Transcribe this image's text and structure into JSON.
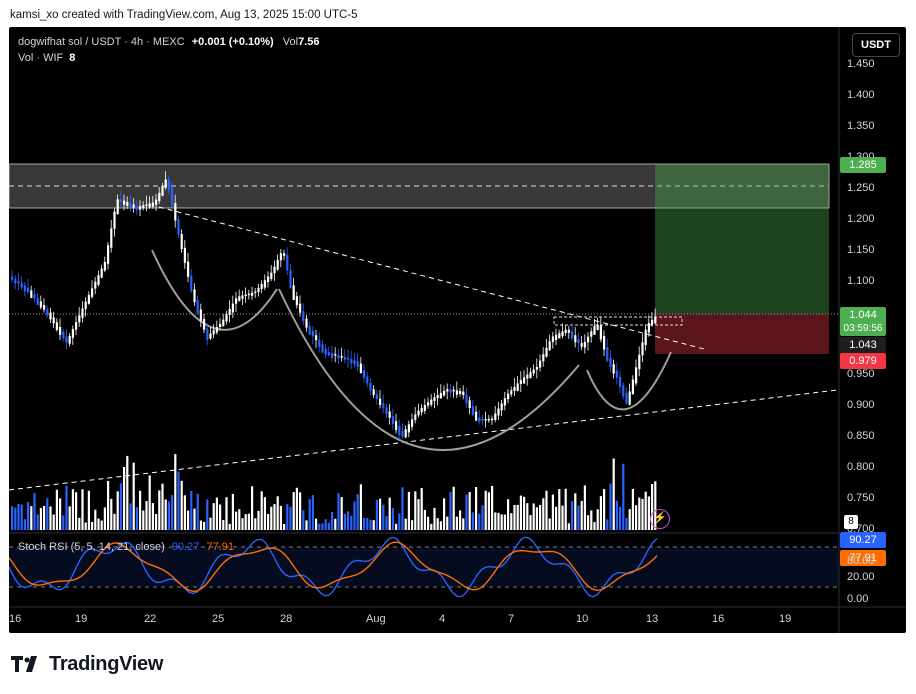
{
  "attribution": "kamsi_xo created with TradingView.com, Aug 13, 2025 15:00 UTC-5",
  "legend": {
    "symbol": "dogwifhat sol / USDT · 4h · MEXC",
    "change": "+0.001 (+0.10%)",
    "vol_label": "Vol",
    "vol_value": "7.56",
    "sub_label": "Vol · WIF",
    "sub_value": "8"
  },
  "currency_button": "USDT",
  "price_axis": [
    "1.450",
    "1.400",
    "1.350",
    "1.300",
    "1.250",
    "1.200",
    "1.150",
    "1.100",
    "1.050",
    "1.000",
    "0.950",
    "0.900",
    "0.850",
    "0.800",
    "0.750",
    "0.700"
  ],
  "price_tags": {
    "target": "1.285",
    "last_price": "1.044",
    "countdown": "03:59:56",
    "prev_close": "1.043",
    "stop": "0.979",
    "volume": "8"
  },
  "stoch_rsi": {
    "label": "Stoch RSI (5, 5, 14, 21, close)",
    "k_value": "90.27",
    "d_value": "77.91",
    "axis": [
      "80.00",
      "20.00",
      "0.00"
    ]
  },
  "time_axis": [
    "16",
    "19",
    "22",
    "25",
    "28",
    "Aug",
    "4",
    "7",
    "10",
    "13",
    "16",
    "19"
  ],
  "brand": "TradingView",
  "colors": {
    "background": "#000000",
    "candle_up": "#ffffff",
    "candle_down": "#2962ff",
    "stoch_k": "#2962ff",
    "stoch_d": "#ff6d00",
    "target_zone": "#4caf50",
    "stop_zone": "#f23645"
  },
  "chart_data": {
    "type": "candlestick",
    "ylim": [
      0.68,
      1.46
    ],
    "series": [
      {
        "name": "Vol · WIF"
      },
      {
        "name": "Stoch RSI"
      }
    ]
  }
}
